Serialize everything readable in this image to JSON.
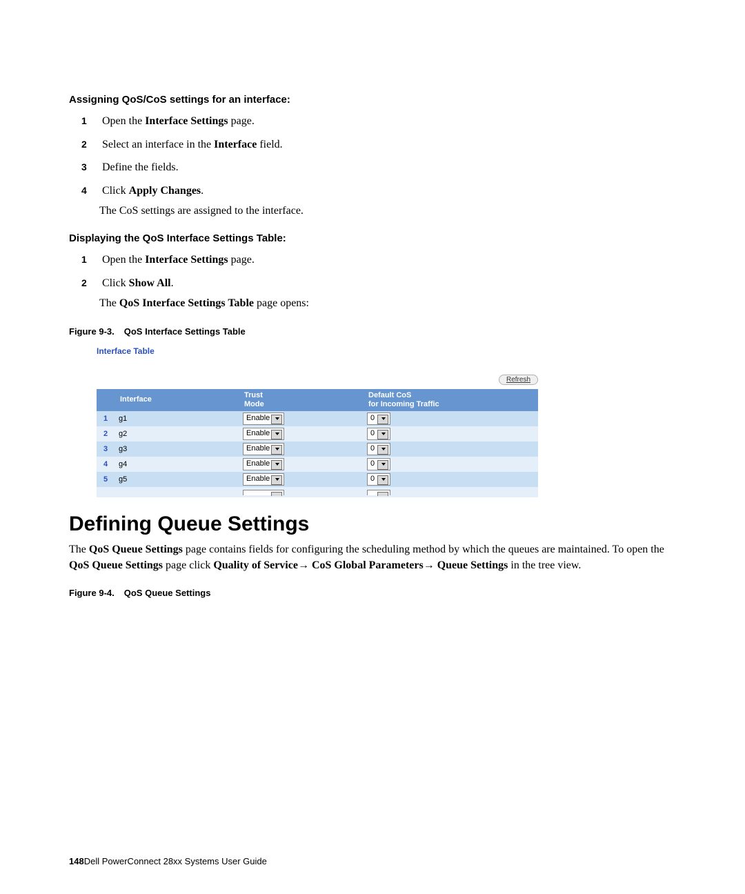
{
  "section1": {
    "heading": "Assigning QoS/CoS settings for an interface:",
    "steps": [
      {
        "num": "1",
        "pre": "Open the ",
        "bold": "Interface Settings",
        "post": " page."
      },
      {
        "num": "2",
        "pre": "Select an interface in the ",
        "bold": "Interface",
        "post": " field."
      },
      {
        "num": "3",
        "pre": "Define the fields.",
        "bold": "",
        "post": ""
      },
      {
        "num": "4",
        "pre": "Click ",
        "bold": "Apply Changes",
        "post": "."
      }
    ],
    "extra": "The CoS settings are assigned to the interface."
  },
  "section2": {
    "heading": "Displaying the QoS Interface Settings Table:",
    "steps": [
      {
        "num": "1",
        "pre": "Open the ",
        "bold": "Interface Settings",
        "post": " page."
      },
      {
        "num": "2",
        "pre": "Click ",
        "bold": "Show All",
        "post": "."
      }
    ],
    "extra_pre": "The ",
    "extra_bold": "QoS Interface Settings Table",
    "extra_post": " page opens:"
  },
  "figure3": {
    "caption_label": "Figure 9-3.",
    "caption_title": "QoS Interface Settings Table",
    "table_title": "Interface Table",
    "refresh_label": "Refresh",
    "columns": {
      "idx": "",
      "interface": "Interface",
      "trust": "Trust\nMode",
      "default_cos": "Default CoS\nfor Incoming Traffic"
    },
    "rows": [
      {
        "n": "1",
        "if": "g1",
        "trust": "Enable",
        "cos": "0",
        "cls": "row-a"
      },
      {
        "n": "2",
        "if": "g2",
        "trust": "Enable",
        "cos": "0",
        "cls": "row-b"
      },
      {
        "n": "3",
        "if": "g3",
        "trust": "Enable",
        "cos": "0",
        "cls": "row-a"
      },
      {
        "n": "4",
        "if": "g4",
        "trust": "Enable",
        "cos": "0",
        "cls": "row-b"
      },
      {
        "n": "5",
        "if": "g5",
        "trust": "Enable",
        "cos": "0",
        "cls": "row-a"
      }
    ],
    "partial": {
      "n": "",
      "if": "",
      "trust": "",
      "cos": ""
    },
    "colors": {
      "header_bg": "#6795cf",
      "header_fg": "#ffffff",
      "row_a": "#c8def2",
      "row_b": "#e4eff9",
      "title_color": "#2a4fc0"
    }
  },
  "defining": {
    "heading": "Defining Queue Settings",
    "para_parts": [
      {
        "t": "The ",
        "b": false
      },
      {
        "t": "QoS Queue Settings",
        "b": true
      },
      {
        "t": " page contains fields for configuring the scheduling method by which the queues are maintained. To open the ",
        "b": false
      },
      {
        "t": "QoS Queue Settings",
        "b": true
      },
      {
        "t": " page click ",
        "b": false
      },
      {
        "t": "Quality of Service",
        "b": true
      },
      {
        "t": "→ ",
        "b": false
      },
      {
        "t": "CoS Global Parameters",
        "b": true
      },
      {
        "t": "→ ",
        "b": false
      },
      {
        "t": "Queue Settings",
        "b": true
      },
      {
        "t": " in the tree view.",
        "b": false
      }
    ]
  },
  "figure4": {
    "caption_label": "Figure 9-4.",
    "caption_title": "QoS Queue Settings"
  },
  "footer": {
    "page": "148",
    "title": "Dell PowerConnect 28xx Systems User Guide"
  }
}
